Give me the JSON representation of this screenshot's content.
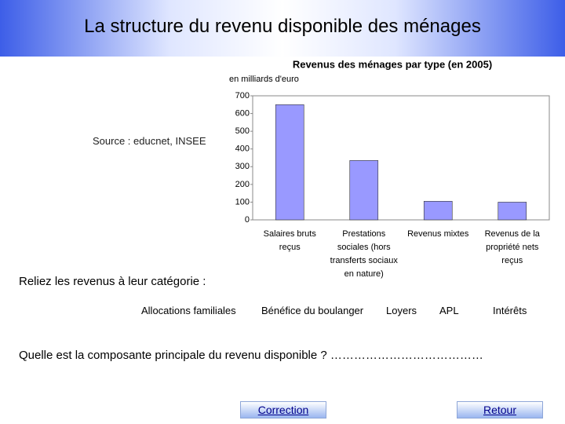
{
  "header": {
    "title": "La structure du revenu disponible des ménages"
  },
  "source": "Source : educnet, INSEE",
  "chart_data": {
    "type": "bar",
    "title": "Revenus des ménages par type (en 2005)",
    "y_label": "en milliards d'euro",
    "categories": [
      "Salaires bruts reçus",
      "Prestations sociales (hors transferts sociaux en nature)",
      "Revenus mixtes",
      "Revenus de la propriété nets reçus"
    ],
    "values": [
      650,
      335,
      105,
      100
    ],
    "color": "#9999ff",
    "ylim": [
      0,
      700
    ],
    "yticks": [
      0,
      100,
      200,
      300,
      400,
      500,
      600,
      700
    ],
    "grid": false
  },
  "instruction": "Reliez les revenus à leur catégorie :",
  "items": [
    "Allocations familiales",
    "Bénéfice du boulanger",
    "Loyers",
    "APL",
    "Intérêts"
  ],
  "question": "Quelle est la composante principale du revenu disponible ? …………………………………",
  "buttons": [
    "Correction",
    "Retour"
  ]
}
